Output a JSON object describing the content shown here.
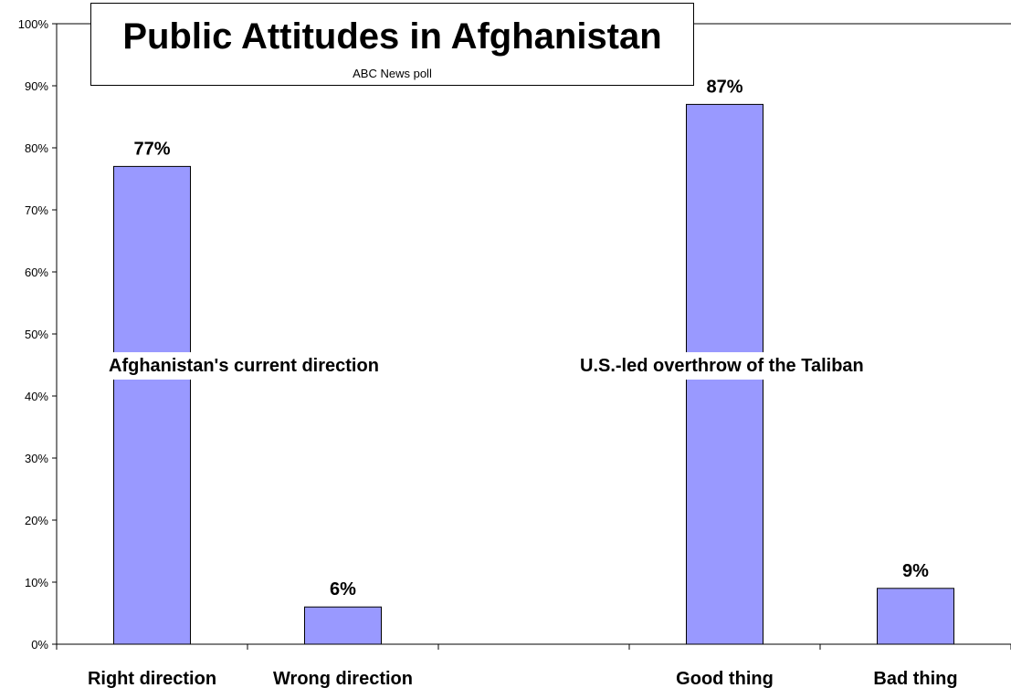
{
  "chart_data": {
    "type": "bar",
    "title": "Public Attitudes in Afghanistan",
    "subtitle": "ABC News poll",
    "categories": [
      "Right direction",
      "Wrong direction",
      "",
      "Good thing",
      "Bad thing"
    ],
    "values": [
      77,
      6,
      null,
      87,
      9
    ],
    "data_labels": [
      "77%",
      "6%",
      "",
      "87%",
      "9%"
    ],
    "group_labels": [
      "Afghanistan's current direction",
      "U.S.-led overthrow of the Taliban"
    ],
    "y_ticks": [
      "0%",
      "10%",
      "20%",
      "30%",
      "40%",
      "50%",
      "60%",
      "70%",
      "80%",
      "90%",
      "100%"
    ],
    "ylim": [
      0,
      100
    ],
    "grid": false,
    "bar_color": "#9999ff"
  }
}
